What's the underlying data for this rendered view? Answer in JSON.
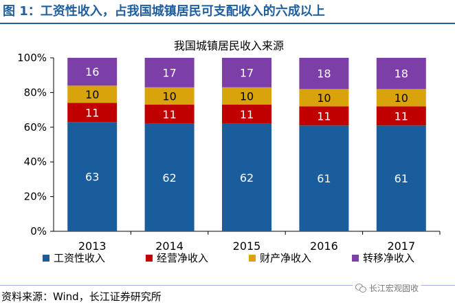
{
  "figure_title": "图 1：工资性收入，占我国城镇居民可支配收入的六成以上",
  "source_note": "资料来源：Wind，长江证券研究所",
  "watermark": "长江宏观固收",
  "chart_data": {
    "type": "bar",
    "stacked": true,
    "title": "我国城镇居民收入来源",
    "xlabel": "",
    "ylabel": "",
    "ylim": [
      0,
      100
    ],
    "yticks": [
      "0%",
      "20%",
      "40%",
      "60%",
      "80%",
      "100%"
    ],
    "categories": [
      "2013",
      "2014",
      "2015",
      "2016",
      "2017"
    ],
    "series": [
      {
        "name": "工资性收入",
        "values": [
          63,
          62,
          62,
          61,
          61
        ],
        "color": "#1a5d9c",
        "label_color": "#ffffff"
      },
      {
        "name": "经营净收入",
        "values": [
          11,
          11,
          11,
          11,
          11
        ],
        "color": "#c00000",
        "label_color": "#ffffff"
      },
      {
        "name": "财产净收入",
        "values": [
          10,
          10,
          10,
          10,
          10
        ],
        "color": "#d9a30c",
        "label_color": "#000000"
      },
      {
        "name": "转移净收入",
        "values": [
          16,
          17,
          17,
          18,
          18
        ],
        "color": "#7c3fa8",
        "label_color": "#ffffff"
      }
    ],
    "legend_position": "bottom"
  }
}
